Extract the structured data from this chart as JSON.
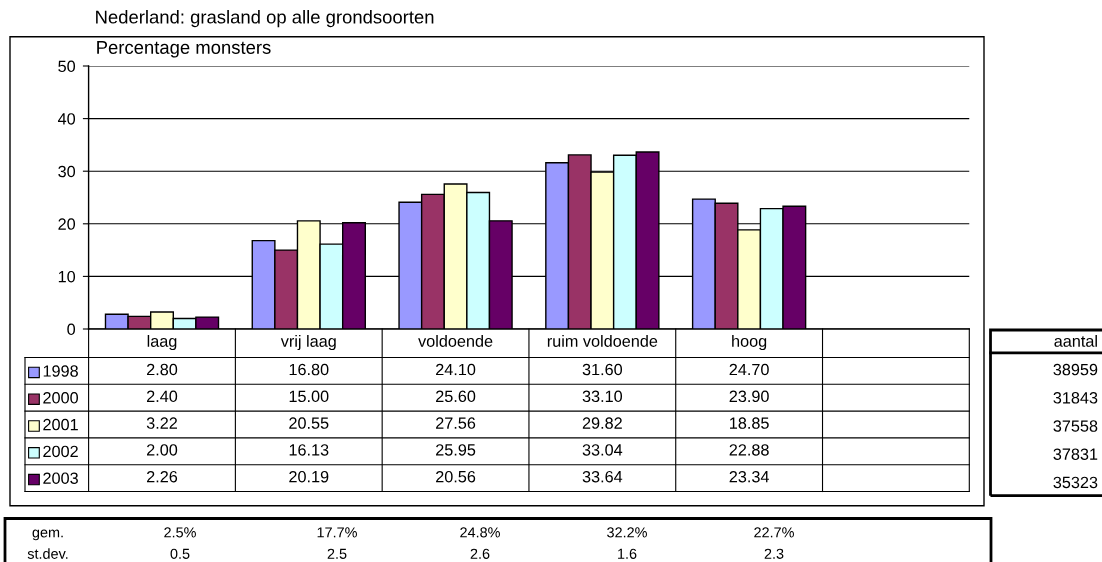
{
  "chart_data": {
    "type": "bar",
    "title": "Nederland: grasland op alle grondsoorten",
    "ylabel": "Percentage monsters",
    "categories": [
      "laag",
      "vrij laag",
      "voldoende",
      "ruim voldoende",
      "hoog",
      null
    ],
    "series": [
      {
        "name": "1998",
        "color": "#9999ff",
        "values": [
          2.8,
          16.8,
          24.1,
          31.6,
          24.7,
          null
        ],
        "value_labels": [
          "2.80",
          "16.80",
          "24.10",
          "31.60",
          "24.70",
          null
        ]
      },
      {
        "name": "2000",
        "color": "#993366",
        "values": [
          2.4,
          15.0,
          25.6,
          33.1,
          23.9,
          null
        ],
        "value_labels": [
          "2.40",
          "15.00",
          "25.60",
          "33.10",
          "23.90",
          null
        ]
      },
      {
        "name": "2001",
        "color": "#ffffcc",
        "values": [
          3.22,
          20.55,
          27.56,
          29.82,
          18.85,
          null
        ],
        "value_labels": [
          "3.22",
          "20.55",
          "27.56",
          "29.82",
          "18.85",
          null
        ]
      },
      {
        "name": "2002",
        "color": "#ccffff",
        "values": [
          2.0,
          16.13,
          25.95,
          33.04,
          22.88,
          null
        ],
        "value_labels": [
          "2.00",
          "16.13",
          "25.95",
          "33.04",
          "22.88",
          null
        ]
      },
      {
        "name": "2003",
        "color": "#660066",
        "values": [
          2.26,
          20.19,
          20.56,
          33.64,
          23.34,
          null
        ],
        "value_labels": [
          "2.26",
          "20.19",
          "20.56",
          "33.64",
          "23.34",
          null
        ]
      }
    ],
    "ylim": [
      0,
      50
    ],
    "yticks": [
      0,
      10,
      20,
      30,
      40,
      50
    ],
    "grid": "y",
    "legend": "bottom",
    "annotations": [
      "aantal",
      "38959",
      "31843",
      "37558",
      "37831",
      "35323",
      "gem.",
      "2.5%",
      "17.7%",
      "24.8%",
      "32.2%",
      "22.7%",
      "st.dev.",
      "0.5",
      "2.5",
      "2.6",
      "1.6",
      "2.3"
    ]
  }
}
